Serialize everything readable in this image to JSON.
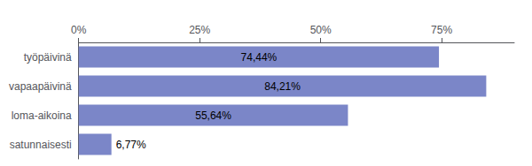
{
  "chart_data": {
    "type": "bar",
    "orientation": "horizontal",
    "categories": [
      "työpäivinä",
      "vapaapäivinä",
      "loma-aikoina",
      "satunnaisesti"
    ],
    "values": [
      74.44,
      84.21,
      55.64,
      6.77
    ],
    "value_labels": [
      "74,44%",
      "84,21%",
      "55,64%",
      "6,77%"
    ],
    "color": "#7b86c8",
    "xlim": [
      0,
      90
    ],
    "xticks": [
      {
        "value": 0,
        "label": "0%"
      },
      {
        "value": 25,
        "label": "25%"
      },
      {
        "value": 50,
        "label": "50%"
      },
      {
        "value": 75,
        "label": "75%"
      }
    ],
    "grid": false,
    "data_labels": true
  }
}
